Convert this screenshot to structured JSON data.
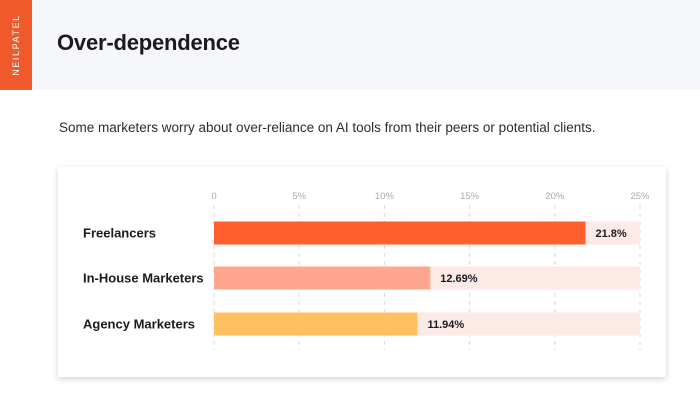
{
  "brand": {
    "label": "NEILPATEL"
  },
  "header": {
    "title": "Over-dependence"
  },
  "subtitle": "Some marketers worry about over-reliance on AI tools from their peers or potential clients.",
  "colors": {
    "brand_orange": "#f05a2a",
    "bar_track": "#fbeae6",
    "grid": "#d9d9de",
    "tick_text": "#a9a9b0"
  },
  "chart_data": {
    "type": "bar",
    "orientation": "horizontal",
    "categories": [
      "Freelancers",
      "In-House Marketers",
      "Agency Marketers"
    ],
    "values": [
      21.8,
      12.69,
      11.94
    ],
    "value_labels": [
      "21.8%",
      "12.69%",
      "11.94%"
    ],
    "bar_colors": [
      "#ff5e2d",
      "#ffa78e",
      "#ffc062"
    ],
    "xlim": [
      0,
      25
    ],
    "ticks": [
      0,
      5,
      10,
      15,
      20,
      25
    ],
    "tick_labels": [
      "0",
      "5%",
      "10%",
      "15%",
      "20%",
      "25%"
    ],
    "grid": true,
    "legend": "none"
  }
}
